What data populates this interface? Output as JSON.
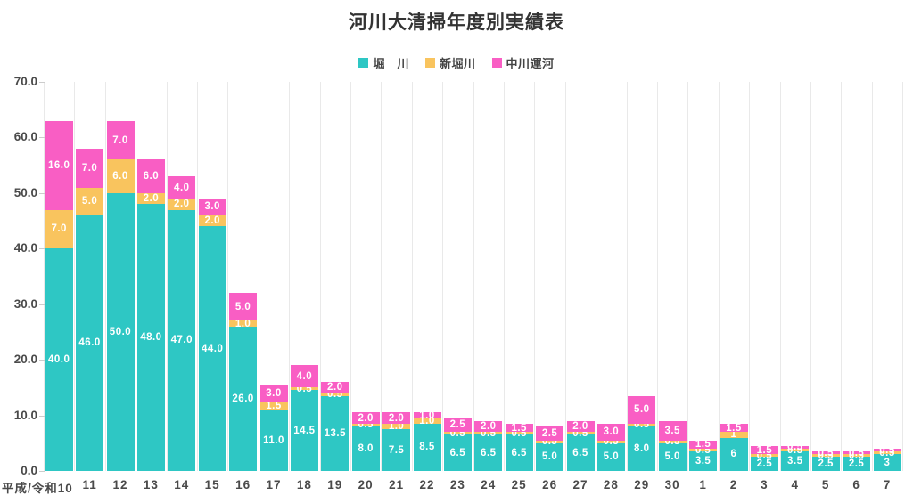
{
  "title": "河川大清掃年度別実績表",
  "y_axis": {
    "ticks": [
      "0.0",
      "10.0",
      "20.0",
      "30.0",
      "40.0",
      "50.0",
      "60.0",
      "70.0"
    ]
  },
  "chart_data": {
    "type": "bar",
    "stacked": true,
    "title": "河川大清掃年度別実績表",
    "xlabel": "",
    "ylabel": "",
    "ylim": [
      0,
      70
    ],
    "grid": "vertical-only",
    "legend_position": "top",
    "y_ticks": [
      "0.0",
      "10.0",
      "20.0",
      "30.0",
      "40.0",
      "50.0",
      "60.0",
      "70.0"
    ],
    "categories": [
      "平成/令和10",
      "11",
      "12",
      "13",
      "14",
      "15",
      "16",
      "17",
      "18",
      "19",
      "20",
      "21",
      "22",
      "23",
      "24",
      "25",
      "26",
      "27",
      "28",
      "29",
      "30",
      "1",
      "2",
      "3",
      "4",
      "5",
      "6",
      "7"
    ],
    "series": [
      {
        "key": "horikawa",
        "name": "堀　川",
        "color": "#2EC7C4",
        "values": [
          40,
          46,
          50,
          48,
          47,
          44,
          26,
          11,
          14.5,
          13.5,
          8,
          7.5,
          8.5,
          6.5,
          6.5,
          6.5,
          5,
          6.5,
          5,
          8,
          5,
          3.5,
          6,
          2.5,
          3.5,
          2.5,
          2.5,
          3
        ],
        "labels": [
          "40.0",
          "46.0",
          "50.0",
          "48.0",
          "47.0",
          "44.0",
          "26.0",
          "11.0",
          "14.5",
          "13.5",
          "8.0",
          "7.5",
          "8.5",
          "6.5",
          "6.5",
          "6.5",
          "5.0",
          "6.5",
          "5.0",
          "8.0",
          "5.0",
          "3.5",
          "6",
          "2.5",
          "3.5",
          "2.5",
          "2.5",
          "3"
        ]
      },
      {
        "key": "shinhorikawa",
        "name": "新堀川",
        "color": "#F9C45E",
        "values": [
          7,
          5,
          6,
          2,
          2,
          2,
          1,
          1.5,
          0.5,
          0.5,
          0.5,
          1,
          1,
          0.5,
          0.5,
          0.5,
          0.5,
          0.5,
          0.5,
          0.5,
          0.5,
          0.5,
          1,
          0.5,
          0.5,
          0.5,
          0.5,
          0.5
        ],
        "labels": [
          "7.0",
          "5.0",
          "6.0",
          "2.0",
          "2.0",
          "2.0",
          "1.0",
          "1.5",
          "0.5",
          "0.5",
          "0.5",
          "1.0",
          "1.0",
          "0.5",
          "0.5",
          "0.5",
          "0.5",
          "0.5",
          "0.5",
          "0.5",
          "0.5",
          "0.5",
          "1",
          "0.5",
          "0.5",
          "0.5",
          "0.5",
          "0.5"
        ]
      },
      {
        "key": "nakagawa-unga",
        "name": "中川運河",
        "color": "#F95EC4",
        "values": [
          16,
          7,
          7,
          6,
          4,
          3,
          5,
          3,
          4,
          2,
          2,
          2,
          1,
          2.5,
          2,
          1.5,
          2.5,
          2,
          3,
          5,
          3.5,
          1.5,
          1.5,
          1.5,
          0.5,
          0.5,
          0.5,
          0.5
        ],
        "labels": [
          "16.0",
          "7.0",
          "7.0",
          "6.0",
          "4.0",
          "3.0",
          "5.0",
          "3.0",
          "4.0",
          "2.0",
          "2.0",
          "2.0",
          "1.0",
          "2.5",
          "2.0",
          "1.5",
          "2.5",
          "2.0",
          "3.0",
          "5.0",
          "3.5",
          "1.5",
          "1.5",
          "1.5",
          "0.5",
          "0.5",
          "0.5",
          "0.5"
        ]
      }
    ]
  }
}
